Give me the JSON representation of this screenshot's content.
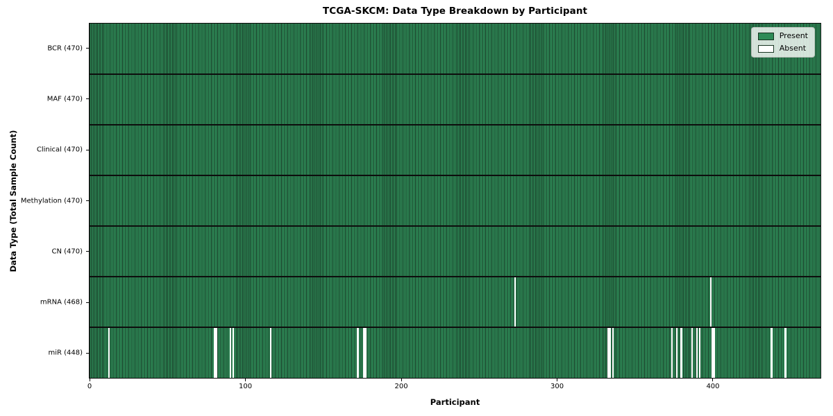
{
  "figure": {
    "title": "TCGA-SKCM: Data Type Breakdown by Participant",
    "xlabel": "Participant",
    "ylabel": "Data Type (Total Sample Count)"
  },
  "legend": {
    "position": "upper right",
    "items": [
      {
        "label": "Present",
        "color": "#2e8b57"
      },
      {
        "label": "Absent",
        "color": "#ffffff"
      }
    ]
  },
  "chart_data": {
    "type": "heatmap",
    "title": "TCGA-SKCM: Data Type Breakdown by Participant",
    "xlabel": "Participant",
    "ylabel": "Data Type (Total Sample Count)",
    "n_participants": 470,
    "x_ticks": [
      0,
      100,
      200,
      300,
      400
    ],
    "x_range": [
      -0.5,
      469.5
    ],
    "grid": "row-separators",
    "rows": [
      {
        "label": "BCR (470)",
        "data_type": "BCR",
        "present_count": 470,
        "absent_indices": []
      },
      {
        "label": "MAF (470)",
        "data_type": "MAF",
        "present_count": 470,
        "absent_indices": []
      },
      {
        "label": "Clinical (470)",
        "data_type": "Clinical",
        "present_count": 470,
        "absent_indices": []
      },
      {
        "label": "Methylation (470)",
        "data_type": "Methylation",
        "present_count": 470,
        "absent_indices": []
      },
      {
        "label": "CN (470)",
        "data_type": "CN",
        "present_count": 470,
        "absent_indices": []
      },
      {
        "label": "mRNA (468)",
        "data_type": "mRNA",
        "present_count": 468,
        "absent_indices": [
          273,
          399
        ]
      },
      {
        "label": "miR (448)",
        "data_type": "miR",
        "present_count": 448,
        "absent_indices": [
          12,
          80,
          81,
          90,
          92,
          116,
          172,
          176,
          177,
          333,
          334,
          336,
          374,
          377,
          380,
          387,
          390,
          392,
          400,
          401,
          438,
          447
        ]
      }
    ],
    "legend_entries": [
      "Present",
      "Absent"
    ],
    "colors": {
      "present": "#2e8b57",
      "absent": "#ffffff",
      "bar_edge": "#193c28",
      "row_separator": "#0d0d0d",
      "spine": "#0a0a0a"
    }
  }
}
